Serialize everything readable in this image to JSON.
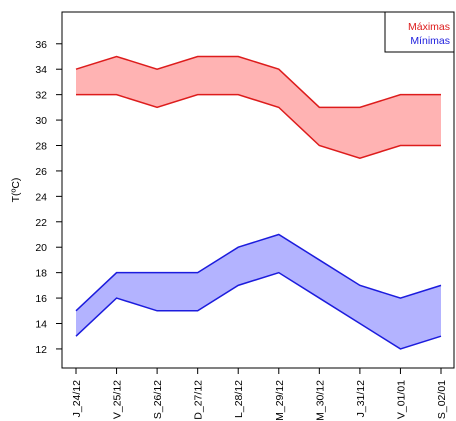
{
  "chart_data": {
    "type": "area",
    "ylabel": "T(ºC)",
    "ylim": [
      10.5,
      38.5
    ],
    "yticks": [
      12,
      14,
      16,
      18,
      20,
      22,
      24,
      26,
      28,
      30,
      32,
      34,
      36
    ],
    "categories": [
      "J_24/12",
      "V_25/12",
      "S_26/12",
      "D_27/12",
      "L_28/12",
      "M_29/12",
      "M_30/12",
      "J_31/12",
      "V_01/01",
      "S_02/01"
    ],
    "legend_position": "top-right",
    "series": [
      {
        "name": "Máximas",
        "color": "#dd1c1c",
        "fill": "#ffb3b3",
        "upper": [
          34,
          35,
          34,
          35,
          35,
          34,
          31,
          31,
          32,
          32
        ],
        "lower": [
          32,
          32,
          31,
          32,
          32,
          31,
          28,
          27,
          28,
          28
        ]
      },
      {
        "name": "Mínimas",
        "color": "#1c1cdd",
        "fill": "#b3b3ff",
        "upper": [
          15,
          18,
          18,
          18,
          20,
          21,
          19,
          17,
          16,
          17
        ],
        "lower": [
          13,
          16,
          15,
          15,
          17,
          18,
          16,
          14,
          12,
          13
        ]
      }
    ]
  }
}
